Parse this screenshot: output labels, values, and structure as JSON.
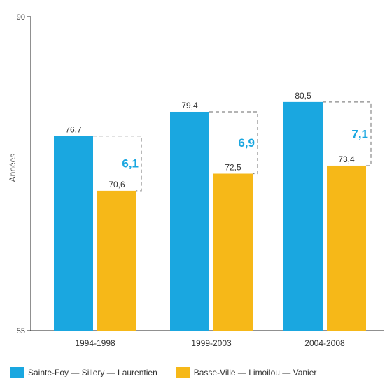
{
  "colors": {
    "series1": "#1aa7e0",
    "series2": "#f6b818",
    "axis": "#222222",
    "dash": "#888888",
    "diff_text": "#1aa7e0"
  },
  "chart_data": {
    "type": "bar",
    "categories": [
      "1994-1998",
      "1999-2003",
      "2004-2008"
    ],
    "series": [
      {
        "name": "Sainte-Foy — Sillery — Laurentien",
        "values": [
          76.7,
          79.4,
          80.5
        ],
        "labels": [
          "76,7",
          "79,4",
          "80,5"
        ]
      },
      {
        "name": "Basse-Ville — Limoilou — Vanier",
        "values": [
          70.6,
          72.5,
          73.4
        ],
        "labels": [
          "70,6",
          "72,5",
          "73,4"
        ]
      }
    ],
    "differences": [
      6.1,
      6.9,
      7.1
    ],
    "difference_labels": [
      "6,1",
      "6,9",
      "7,1"
    ],
    "ylabel": "Années",
    "ylim": [
      55,
      90
    ],
    "yticks": [
      "55",
      "90"
    ],
    "grid": false,
    "legend_position": "bottom"
  }
}
